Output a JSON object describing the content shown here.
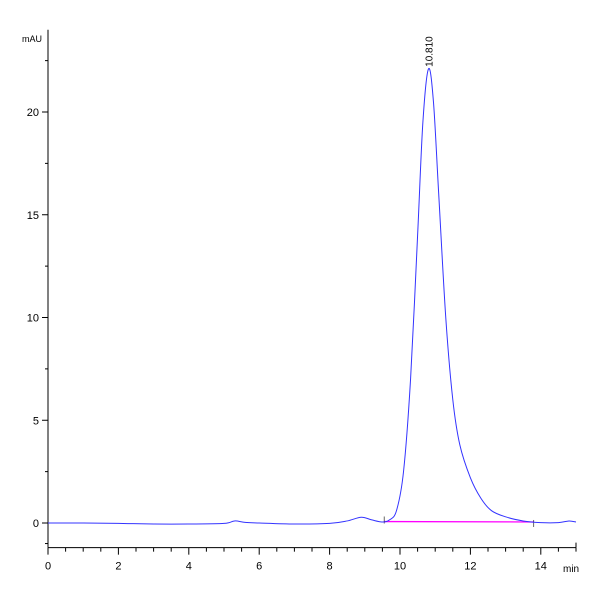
{
  "chart_data": {
    "type": "line",
    "title": "",
    "xlabel": "min",
    "ylabel": "mAU",
    "xlim": [
      0,
      15
    ],
    "ylim": [
      -1.2,
      24
    ],
    "x_ticks": [
      0,
      2,
      4,
      6,
      8,
      10,
      12,
      14
    ],
    "y_ticks": [
      0,
      5,
      10,
      15,
      20
    ],
    "grid": false,
    "series": [
      {
        "color": "#3333ff",
        "points": [
          [
            0,
            0
          ],
          [
            1,
            0
          ],
          [
            2,
            -0.02
          ],
          [
            3,
            -0.05
          ],
          [
            4,
            -0.05
          ],
          [
            5,
            -0.02
          ],
          [
            5.3,
            0.1
          ],
          [
            5.6,
            0.03
          ],
          [
            6,
            0
          ],
          [
            7,
            -0.05
          ],
          [
            8,
            -0.02
          ],
          [
            8.5,
            0.1
          ],
          [
            8.9,
            0.28
          ],
          [
            9.2,
            0.15
          ],
          [
            9.5,
            0.05
          ],
          [
            9.7,
            0.15
          ],
          [
            9.9,
            0.6
          ],
          [
            10.1,
            2.5
          ],
          [
            10.3,
            7
          ],
          [
            10.5,
            14
          ],
          [
            10.65,
            19.5
          ],
          [
            10.81,
            22.1
          ],
          [
            10.95,
            20.5
          ],
          [
            11.1,
            16
          ],
          [
            11.3,
            10
          ],
          [
            11.5,
            6
          ],
          [
            11.7,
            3.8
          ],
          [
            12,
            2.2
          ],
          [
            12.3,
            1.2
          ],
          [
            12.6,
            0.6
          ],
          [
            13,
            0.3
          ],
          [
            13.5,
            0.1
          ],
          [
            14,
            0.02
          ],
          [
            14.5,
            0.02
          ],
          [
            14.8,
            0.1
          ],
          [
            15,
            0.05
          ]
        ]
      }
    ],
    "baseline": {
      "color": "#ff00ff",
      "from": [
        9.55,
        0.07
      ],
      "to": [
        13.8,
        0.05
      ]
    },
    "peaks": [
      {
        "label": "10.810",
        "x": 10.81,
        "y": 22.1
      }
    ]
  }
}
